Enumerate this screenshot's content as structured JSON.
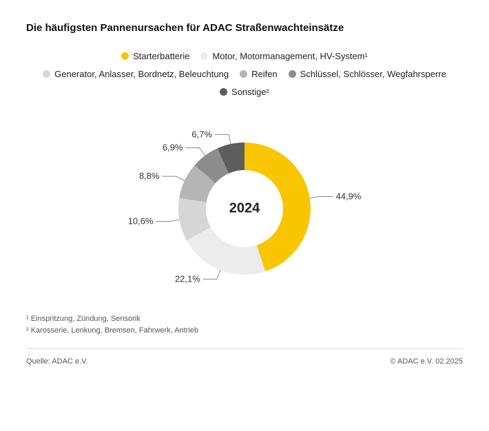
{
  "title": "Die häufigsten Pannenursachen für ADAC Straßenwachteinsätze",
  "chart": {
    "type": "donut",
    "center_label": "2024",
    "center_fontsize": 20,
    "start_angle_deg": 0,
    "direction": "clockwise",
    "inner_radius": 56,
    "outer_radius": 96,
    "gap_deg": 0,
    "background_color": "#ffffff",
    "data": [
      {
        "label": "Starterbatterie",
        "value": 44.9,
        "color": "#f8c500",
        "display": "44,9%"
      },
      {
        "label": "Motor, Motormanagement, HV-System¹",
        "value": 22.1,
        "color": "#ececec",
        "display": "22,1%"
      },
      {
        "label": "Generator, Anlasser, Bordnetz, Beleuchtung",
        "value": 10.6,
        "color": "#d6d6d6",
        "display": "10,6%"
      },
      {
        "label": "Reifen",
        "value": 8.8,
        "color": "#b5b5b5",
        "display": "8,8%"
      },
      {
        "label": "Schlüssel, Schlösser, Wegfahrsperre",
        "value": 6.9,
        "color": "#8d8d8d",
        "display": "6,9%"
      },
      {
        "label": "Sonstige²",
        "value": 6.7,
        "color": "#5d5d5d",
        "display": "6,7%"
      }
    ]
  },
  "legend_order": [
    0,
    1,
    2,
    3,
    4,
    5
  ],
  "footnotes": [
    "¹ Einspritzung, Zündung, Sensorik",
    "² Karosserie, Lenkung, Bremsen, Fahrwerk, Antrieb"
  ],
  "footer": {
    "source": "Quelle: ADAC e.V.",
    "copyright": "© ADAC e.V. 02.2025"
  },
  "typography": {
    "title_fontsize": 15,
    "legend_fontsize": 13,
    "label_fontsize": 13,
    "footnote_fontsize": 11,
    "footer_fontsize": 11,
    "font_family": "Helvetica Neue, Helvetica, Arial, sans-serif"
  }
}
